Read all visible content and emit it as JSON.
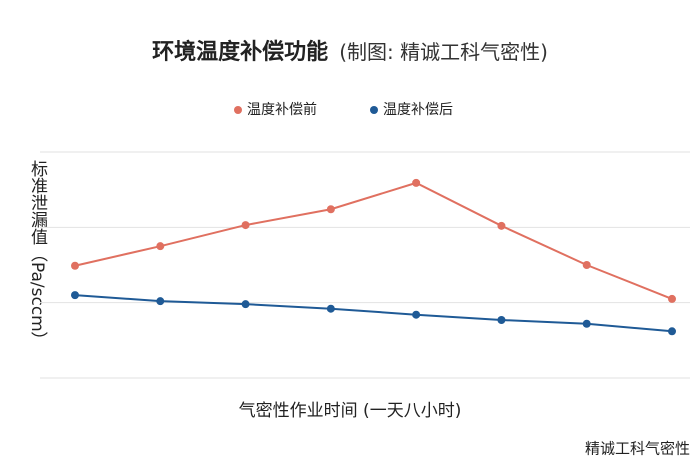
{
  "chart_data": {
    "type": "line",
    "title": "环境温度补偿功能",
    "subtitle": "(制图: 精诚工科气密性)",
    "ylabel": "标准泄漏值（Pa/sccm）",
    "xlabel": "气密性作业时间 (一天八小时)",
    "watermark": "精诚工科气密性",
    "categories": [
      null,
      null,
      null,
      null,
      null,
      null,
      null,
      null
    ],
    "series": [
      {
        "name": "温度补偿前",
        "color": "#e07060",
        "values": [
          1.49,
          1.75,
          2.03,
          2.24,
          2.59,
          2.02,
          1.5,
          1.05
        ]
      },
      {
        "name": "温度补偿后",
        "color": "#1f5a96",
        "values": [
          1.1,
          1.02,
          0.98,
          0.92,
          0.84,
          0.77,
          0.72,
          0.62
        ]
      }
    ],
    "ylim": [
      0,
      3
    ],
    "yticks": [
      0,
      1,
      2,
      3
    ],
    "grid": true
  }
}
